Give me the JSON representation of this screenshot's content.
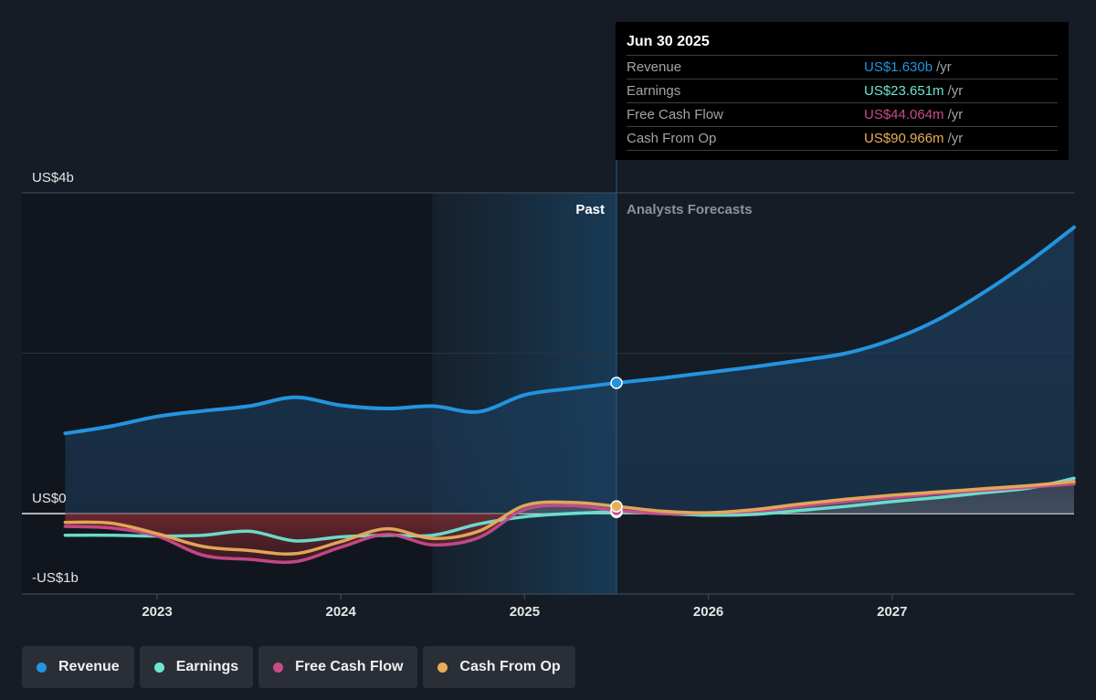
{
  "tooltip": {
    "date": "Jun 30 2025",
    "rows": [
      {
        "label": "Revenue",
        "value": "US$1.630b",
        "unit": "/yr",
        "color": "#2394df"
      },
      {
        "label": "Earnings",
        "value": "US$23.651m",
        "unit": "/yr",
        "color": "#6ce5d2"
      },
      {
        "label": "Free Cash Flow",
        "value": "US$44.064m",
        "unit": "/yr",
        "color": "#c94b8a"
      },
      {
        "label": "Cash From Op",
        "value": "US$90.966m",
        "unit": "/yr",
        "color": "#e9ad5a"
      }
    ]
  },
  "legend": [
    {
      "label": "Revenue",
      "color": "#2394df"
    },
    {
      "label": "Earnings",
      "color": "#6ce5d2"
    },
    {
      "label": "Free Cash Flow",
      "color": "#c94b8a"
    },
    {
      "label": "Cash From Op",
      "color": "#e9ad5a"
    }
  ],
  "chart_data": {
    "type": "line",
    "title": "",
    "xlabel": "",
    "ylabel": "",
    "y_unit": "US$ billions",
    "ylim": [
      -1.0,
      4.0
    ],
    "xlim": [
      2022.5,
      2028.0
    ],
    "y_tick_labels": [
      {
        "value": 4,
        "label": "US$4b"
      },
      {
        "value": 0,
        "label": "US$0"
      },
      {
        "value": -0.8,
        "label": "-US$1b"
      }
    ],
    "gridlines": [
      4,
      2,
      0
    ],
    "x_ticks": [
      {
        "value": 2023,
        "label": "2023"
      },
      {
        "value": 2024,
        "label": "2024"
      },
      {
        "value": 2025,
        "label": "2025"
      },
      {
        "value": 2026,
        "label": "2026"
      },
      {
        "value": 2027,
        "label": "2027"
      }
    ],
    "past_region_start": 2024.5,
    "divider": 2025.5,
    "period_labels": {
      "past": "Past",
      "forecast": "Analysts Forecasts"
    },
    "highlight_x": 2025.5,
    "series": [
      {
        "name": "Revenue",
        "color": "#2394df",
        "x": [
          2022.5,
          2022.75,
          2023.0,
          2023.25,
          2023.5,
          2023.75,
          2024.0,
          2024.25,
          2024.5,
          2024.75,
          2025.0,
          2025.25,
          2025.5,
          2025.75,
          2026.0,
          2026.25,
          2026.5,
          2026.75,
          2027.0,
          2027.25,
          2027.5,
          2027.75,
          2028.0
        ],
        "y": [
          1.0,
          1.09,
          1.21,
          1.28,
          1.34,
          1.45,
          1.35,
          1.31,
          1.34,
          1.27,
          1.48,
          1.56,
          1.63,
          1.69,
          1.76,
          1.83,
          1.91,
          2.0,
          2.17,
          2.42,
          2.76,
          3.15,
          3.57
        ]
      },
      {
        "name": "Earnings",
        "color": "#6ce5d2",
        "x": [
          2022.5,
          2022.75,
          2023.0,
          2023.25,
          2023.5,
          2023.75,
          2024.0,
          2024.25,
          2024.5,
          2024.75,
          2025.0,
          2025.25,
          2025.5,
          2025.75,
          2026.0,
          2026.25,
          2026.5,
          2026.75,
          2027.0,
          2027.25,
          2027.5,
          2027.75,
          2028.0
        ],
        "y": [
          -0.27,
          -0.27,
          -0.28,
          -0.27,
          -0.22,
          -0.34,
          -0.29,
          -0.27,
          -0.27,
          -0.13,
          -0.04,
          0.0,
          0.02,
          0.0,
          -0.02,
          -0.01,
          0.04,
          0.09,
          0.15,
          0.2,
          0.26,
          0.32,
          0.44
        ]
      },
      {
        "name": "Free Cash Flow",
        "color": "#c94b8a",
        "x": [
          2022.5,
          2022.75,
          2023.0,
          2023.25,
          2023.5,
          2023.75,
          2024.0,
          2024.25,
          2024.5,
          2024.75,
          2025.0,
          2025.25,
          2025.5,
          2025.75,
          2026.0,
          2026.25,
          2026.5,
          2026.75,
          2027.0,
          2027.25,
          2027.5,
          2027.75,
          2028.0
        ],
        "y": [
          -0.16,
          -0.18,
          -0.28,
          -0.52,
          -0.57,
          -0.6,
          -0.42,
          -0.26,
          -0.39,
          -0.3,
          0.05,
          0.1,
          0.04,
          0.0,
          0.01,
          0.03,
          0.09,
          0.15,
          0.2,
          0.25,
          0.29,
          0.33,
          0.37
        ]
      },
      {
        "name": "Cash From Op",
        "color": "#e9ad5a",
        "x": [
          2022.5,
          2022.75,
          2023.0,
          2023.25,
          2023.5,
          2023.75,
          2024.0,
          2024.25,
          2024.5,
          2024.75,
          2025.0,
          2025.25,
          2025.5,
          2025.75,
          2026.0,
          2026.25,
          2026.5,
          2026.75,
          2027.0,
          2027.25,
          2027.5,
          2027.75,
          2028.0
        ],
        "y": [
          -0.11,
          -0.12,
          -0.25,
          -0.41,
          -0.46,
          -0.5,
          -0.35,
          -0.19,
          -0.31,
          -0.22,
          0.1,
          0.14,
          0.09,
          0.03,
          0.01,
          0.05,
          0.12,
          0.18,
          0.23,
          0.27,
          0.31,
          0.35,
          0.4
        ]
      }
    ]
  }
}
